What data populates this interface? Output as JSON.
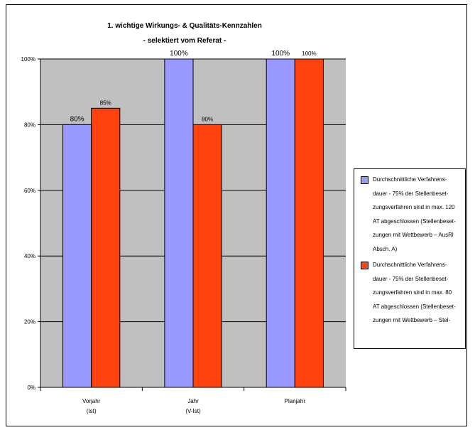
{
  "chart_data": {
    "type": "bar",
    "title": "1. wichtige Wirkungs- & Qualitäts-Kennzahlen",
    "subtitle": "- selektiert vom Referat -",
    "categories": [
      "Vorjahr\n(Ist)",
      "Jahr\n(V-Ist)",
      "Planjahr"
    ],
    "series": [
      {
        "name": "Durchschnittliche Verfahrens-\ndauer -  75% der Stellenbeset-\nzungsverfahren sind in max. 120\nAT abgeschlossen (Stellenbeset-\nzungen mit Wettbewerb – AusRl\nAbsch. A)",
        "values": [
          80,
          100,
          100
        ],
        "labels": [
          "80%",
          "100%",
          "100%"
        ],
        "color": "#9999ff"
      },
      {
        "name": "Durchschnittliche Verfahrens-\ndauer -  75% der Stellenbeset-\nzungsverfahren sind in max. 80\nAT abgeschlossen (Stellenbeset-\nzungen mit Wettbewerb – Stel-",
        "values": [
          85,
          80,
          100
        ],
        "labels": [
          "85%",
          "80%",
          "100%"
        ],
        "color": "#ff420e"
      }
    ],
    "yticks": [
      "0%",
      "20%",
      "40%",
      "60%",
      "80%",
      "100%"
    ],
    "ylim": [
      0,
      100
    ],
    "grid": true,
    "legend": "right",
    "plot_background": "#c0c0c0"
  }
}
